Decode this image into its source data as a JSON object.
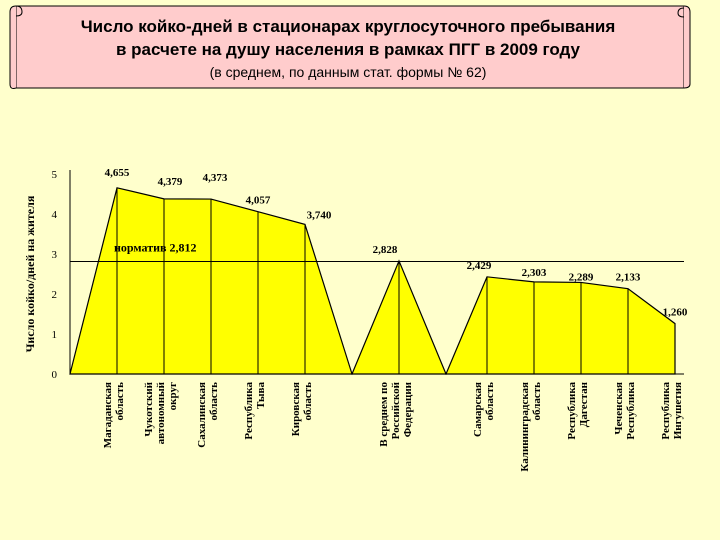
{
  "title": {
    "line1": "Число койко-дней в стационарах круглосуточного пребывания",
    "line2": "в расчете на душу населения в рамках ПГГ в 2009 году",
    "line3": "(в среднем, по данным стат. формы № 62)"
  },
  "colors": {
    "background": "#ffffcc",
    "banner": "#ffcccc",
    "area_fill": "#ffff00",
    "line": "#000000"
  },
  "chart_data": {
    "type": "area",
    "ylabel": "Число койко/дней на жителя",
    "ylim": [
      0,
      5
    ],
    "yticks": [
      0,
      1,
      2,
      3,
      4,
      5
    ],
    "grid": false,
    "legend": "none",
    "norm": {
      "value": 2.812,
      "label": "норматив 2,812"
    },
    "groups": [
      {
        "categories": [
          "Магаданская область",
          "Чукотский автономный округ",
          "Сахалинская область",
          "Республика Тыва",
          "Кировская область"
        ],
        "values": [
          4.655,
          4.379,
          4.373,
          4.057,
          3.74
        ],
        "labels": [
          "4,655",
          "4,379",
          "4,373",
          "4,057",
          "3,740"
        ]
      },
      {
        "categories": [
          "В среднем по Российской Федерации"
        ],
        "values": [
          2.828
        ],
        "labels": [
          "2,828"
        ]
      },
      {
        "categories": [
          "Самарская область",
          "Калининградская область",
          "Республика Дагестан",
          "Чеченская Республика",
          "Республика Ингушетия"
        ],
        "values": [
          2.429,
          2.303,
          2.289,
          2.133,
          1.26
        ],
        "labels": [
          "2,429",
          "2,303",
          "2,289",
          "2,133",
          "1,260"
        ]
      }
    ]
  }
}
